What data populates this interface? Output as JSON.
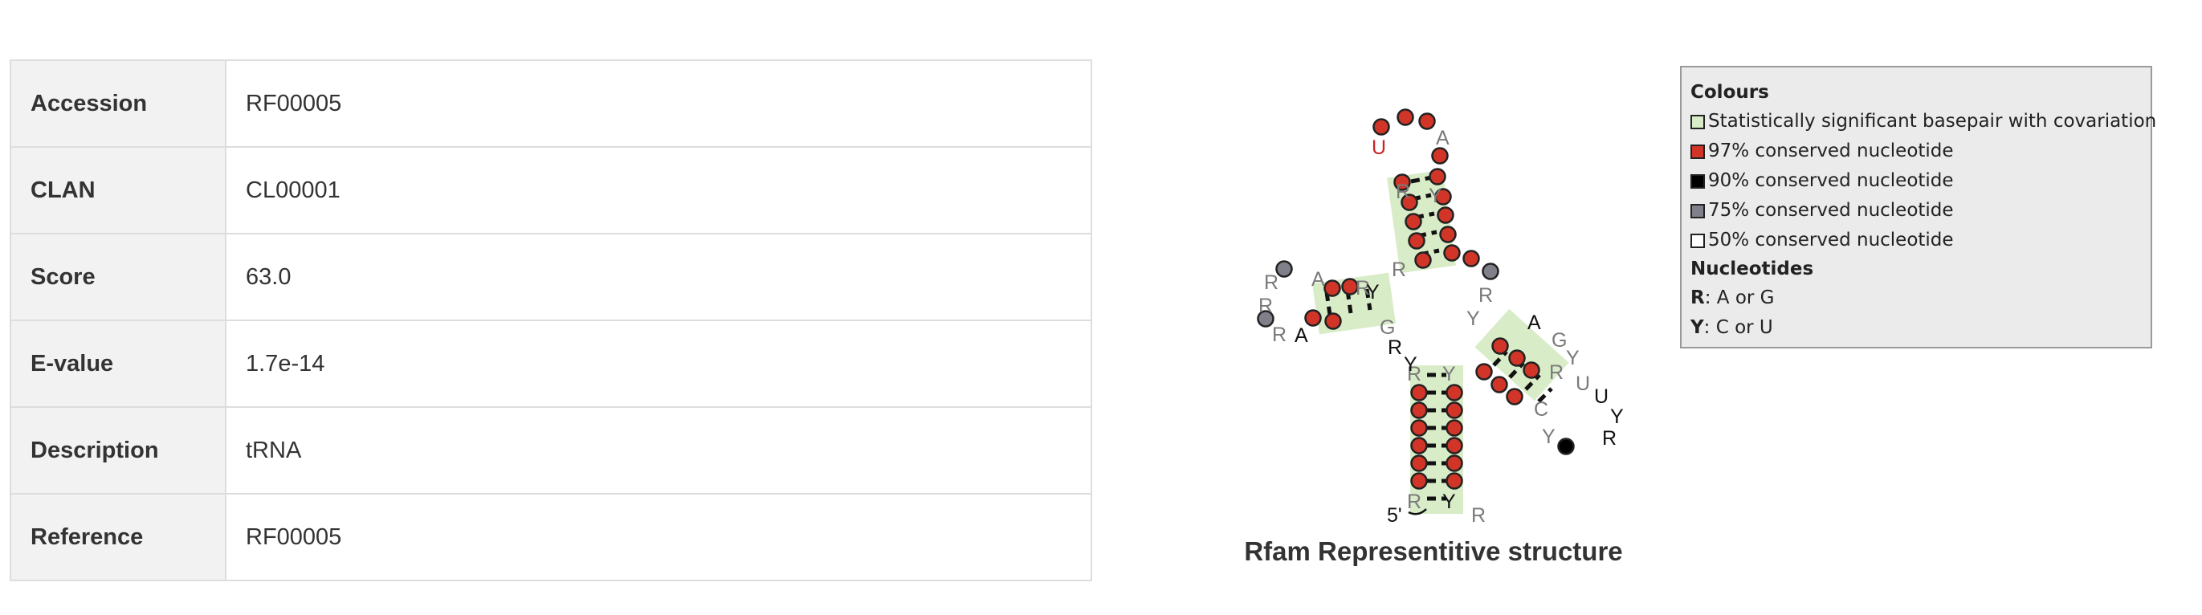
{
  "table": {
    "rows": [
      {
        "key": "Accession",
        "value": "RF00005"
      },
      {
        "key": "CLAN",
        "value": "CL00001"
      },
      {
        "key": "Score",
        "value": "63.0"
      },
      {
        "key": "E-value",
        "value": "1.7e-14"
      },
      {
        "key": "Description",
        "value": "tRNA"
      },
      {
        "key": "Reference",
        "value": "RF00005"
      }
    ]
  },
  "structure": {
    "caption": "Rfam Representitive structure",
    "five_prime_label": "5'",
    "colors": {
      "covariation": "#d9ecc8",
      "c97": "#d03527",
      "c90": "#000000",
      "c75": "#80808a",
      "c50": "#ffffff",
      "label_red": "#cc2222",
      "label_gray": "#7a7a7a",
      "label_black": "#111111"
    },
    "nucleotides": [
      {
        "n": "R",
        "c": "gray"
      },
      {
        "n": "Y",
        "c": "gray"
      },
      {
        "n": "R",
        "c": "gray"
      },
      {
        "n": "Y",
        "c": "black"
      },
      {
        "n": "R",
        "c": "gray"
      },
      {
        "n": "A",
        "c": "black"
      },
      {
        "n": "R",
        "c": "gray"
      },
      {
        "n": "Y",
        "c": "gray"
      },
      {
        "n": "G",
        "c": "gray"
      },
      {
        "n": "C",
        "c": "gray"
      },
      {
        "n": "Y",
        "c": "gray"
      },
      {
        "n": "U",
        "c": "gray"
      },
      {
        "n": "U",
        "c": "black"
      },
      {
        "n": "R",
        "c": "black"
      },
      {
        "n": "Y",
        "c": "black"
      },
      {
        "n": "R",
        "c": "gray"
      },
      {
        "n": "Y",
        "c": "gray"
      },
      {
        "n": "R",
        "c": "gray"
      },
      {
        "n": "R",
        "c": "gray"
      },
      {
        "n": "A",
        "c": "gray"
      },
      {
        "n": "R",
        "c": "gray"
      },
      {
        "n": "R",
        "c": "gray"
      },
      {
        "n": "A",
        "c": "black"
      },
      {
        "n": "R",
        "c": "gray"
      },
      {
        "n": "Y",
        "c": "black"
      },
      {
        "n": "G",
        "c": "gray"
      },
      {
        "n": "R",
        "c": "black"
      },
      {
        "n": "Y",
        "c": "black"
      },
      {
        "n": "U",
        "c": "red"
      },
      {
        "n": "A",
        "c": "gray"
      },
      {
        "n": "R",
        "c": "gray"
      },
      {
        "n": "Y",
        "c": "gray"
      }
    ]
  },
  "legend": {
    "colours_title": "Colours",
    "items": [
      {
        "label": "Statistically significant basepair with covariation",
        "color": "#d9ecc8"
      },
      {
        "label": "97% conserved nucleotide",
        "color": "#d03527"
      },
      {
        "label": "90% conserved nucleotide",
        "color": "#000000"
      },
      {
        "label": "75% conserved nucleotide",
        "color": "#80808a"
      },
      {
        "label": "50% conserved nucleotide",
        "color": "#ffffff"
      }
    ],
    "nucleotides_title": "Nucleotides",
    "codes": [
      {
        "code": "R",
        "meaning": ": A or G"
      },
      {
        "code": "Y",
        "meaning": ": C or U"
      }
    ]
  }
}
